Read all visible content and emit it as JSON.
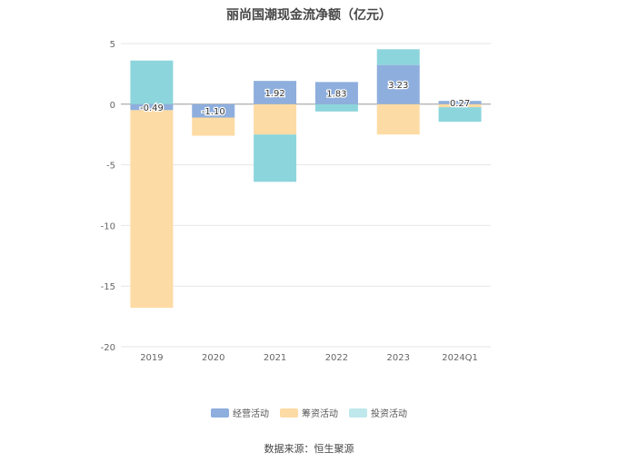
{
  "chart_data": {
    "type": "bar",
    "stacked": true,
    "title": "丽尚国潮现金流净额（亿元）",
    "categories": [
      "2019",
      "2020",
      "2021",
      "2022",
      "2023",
      "2024Q1"
    ],
    "ylim": [
      -20,
      5
    ],
    "yticks": [
      5,
      0,
      -5,
      -10,
      -15,
      -20
    ],
    "grid": true,
    "legend_position": "bottom",
    "series": [
      {
        "name": "经营活动",
        "color": "#8eaedd",
        "values": [
          -0.49,
          -1.1,
          1.92,
          1.83,
          3.23,
          0.27
        ],
        "labels": [
          "-0.49",
          "-1.10",
          "1.92",
          "1.83",
          "3.23",
          "0.27"
        ]
      },
      {
        "name": "筹资活动",
        "color": "#fddba4",
        "values": [
          -16.3,
          -1.5,
          -2.5,
          0,
          -2.5,
          -0.25
        ]
      },
      {
        "name": "投资活动",
        "color": "#8dd5dc",
        "values": [
          3.6,
          0,
          -3.9,
          -0.6,
          1.3,
          -1.2
        ]
      }
    ]
  },
  "legend": {
    "items": [
      {
        "label": "经营活动",
        "color": "#8eaedd"
      },
      {
        "label": "筹资活动",
        "color": "#fddba4"
      },
      {
        "label": "投资活动",
        "color": "#bfe8ec"
      }
    ]
  },
  "source": "数据来源：恒生聚源"
}
